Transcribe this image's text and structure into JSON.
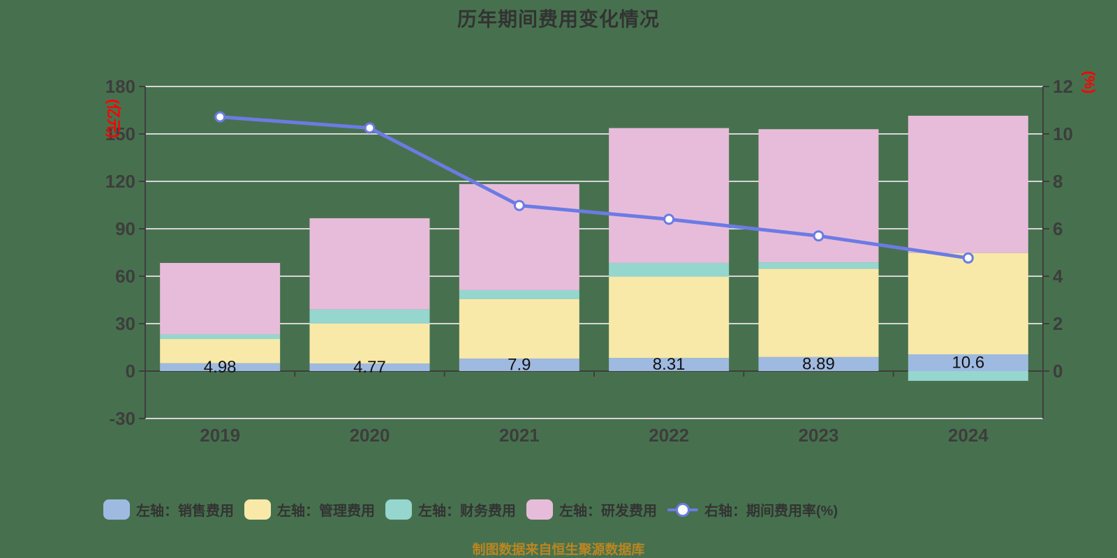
{
  "title": "历年期间费用变化情况",
  "source_note": "制图数据来自恒生聚源数据库",
  "colors": {
    "background": "#47714E",
    "title_text": "#333333",
    "axis_line": "#3E3E3E",
    "grid_line": "#D8D5D8",
    "tick_label": "#3D3D3D",
    "axis_name": "#FF0000",
    "bar_label": "#111111",
    "legend_text": "#333333",
    "source_text": "#BA8622"
  },
  "left_axis": {
    "name": "(亿元)",
    "ticks": [
      "180",
      "150",
      "120",
      "90",
      "60",
      "30",
      "0",
      "-30"
    ],
    "min": -30,
    "max": 180
  },
  "right_axis": {
    "name": "(%)",
    "ticks": [
      "12",
      "10",
      "8",
      "6",
      "4",
      "2",
      "0"
    ],
    "min": 0,
    "max": 12
  },
  "chart_data": {
    "type": "bar",
    "subtype": "stacked bars with secondary-axis line",
    "title": "历年期间费用变化情况",
    "categories": [
      "2019",
      "2020",
      "2021",
      "2022",
      "2023",
      "2024"
    ],
    "series": [
      {
        "name": "左轴：销售费用",
        "type": "bar",
        "stack": "total",
        "axis": "left",
        "color": "#9FBAE1",
        "values": [
          4.98,
          4.77,
          7.9,
          8.31,
          8.89,
          10.6
        ],
        "labels": [
          "4.98",
          "4.77",
          "7.9",
          "8.31",
          "8.89",
          "10.6"
        ]
      },
      {
        "name": "左轴：管理费用",
        "type": "bar",
        "stack": "total",
        "axis": "left",
        "color": "#F8E9A9",
        "values": [
          15.3,
          25.3,
          37.7,
          51.4,
          55.8,
          64.1
        ]
      },
      {
        "name": "左轴：财务费用",
        "type": "bar",
        "stack": "total",
        "axis": "left",
        "color": "#95D6CE",
        "values": [
          2.9,
          8.9,
          5.6,
          8.7,
          4.1,
          -6.2
        ]
      },
      {
        "name": "左轴：研发费用",
        "type": "bar",
        "stack": "total",
        "axis": "left",
        "color": "#E7BCDA",
        "values": [
          45.2,
          57.7,
          67.1,
          85.3,
          84.2,
          86.8
        ]
      },
      {
        "name": "右轴：期间费用率(%)",
        "type": "line",
        "axis": "right",
        "color": "#6C7BE4",
        "values": [
          10.9,
          10.5,
          7.7,
          7.2,
          6.6,
          5.8
        ]
      }
    ],
    "xlabel": "",
    "ylabel_left": "(亿元)",
    "ylabel_right": "(%)",
    "left_ylim": [
      -30,
      180
    ],
    "right_ylim": [
      0,
      12
    ],
    "grid": true,
    "legend_position": "bottom"
  }
}
